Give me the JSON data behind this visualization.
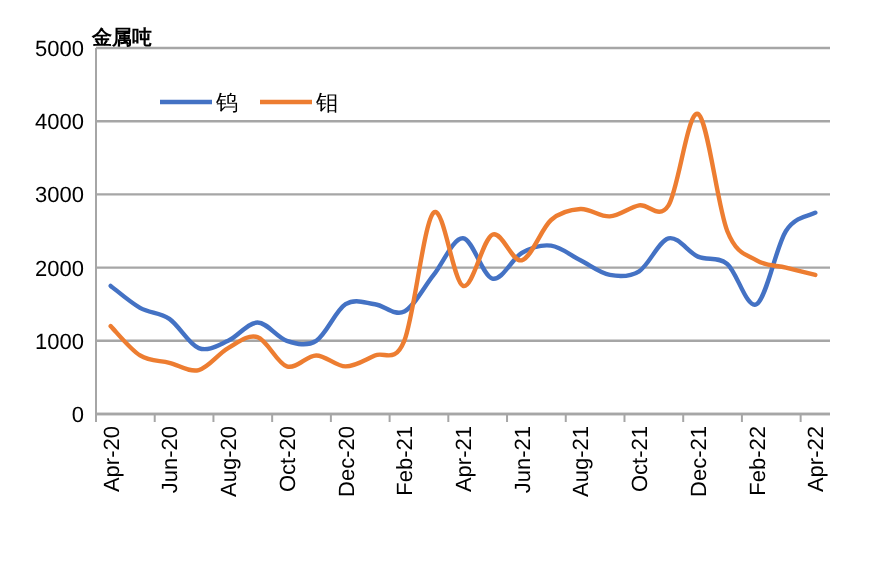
{
  "chart_data": {
    "type": "line",
    "ylabel": "金属吨",
    "categories": [
      "Apr-20",
      null,
      "Jun-20",
      null,
      "Aug-20",
      null,
      "Oct-20",
      null,
      "Dec-20",
      null,
      "Feb-21",
      null,
      "Apr-21",
      null,
      "Jun-21",
      null,
      "Aug-21",
      null,
      "Oct-21",
      null,
      "Dec-21",
      null,
      "Feb-22",
      null,
      "Apr-22"
    ],
    "series": [
      {
        "name": "钨",
        "color": "#4472c4",
        "values": [
          1750,
          1450,
          1300,
          900,
          1000,
          1250,
          1000,
          1000,
          1500,
          1500,
          1400,
          1900,
          2400,
          1850,
          2200,
          2300,
          2100,
          1900,
          1950,
          2400,
          2150,
          2050,
          1500,
          2500,
          2750
        ]
      },
      {
        "name": "钼",
        "color": "#ed7d31",
        "values": [
          1200,
          800,
          700,
          600,
          900,
          1050,
          650,
          800,
          650,
          800,
          1000,
          2750,
          1750,
          2450,
          2100,
          2650,
          2800,
          2700,
          2850,
          2850,
          4100,
          2500,
          2100,
          2000,
          1900
        ]
      }
    ],
    "ylim": [
      0,
      5000
    ],
    "yticks": [
      0,
      1000,
      2000,
      3000,
      4000,
      5000
    ],
    "grid": "y",
    "legend": "top left"
  }
}
